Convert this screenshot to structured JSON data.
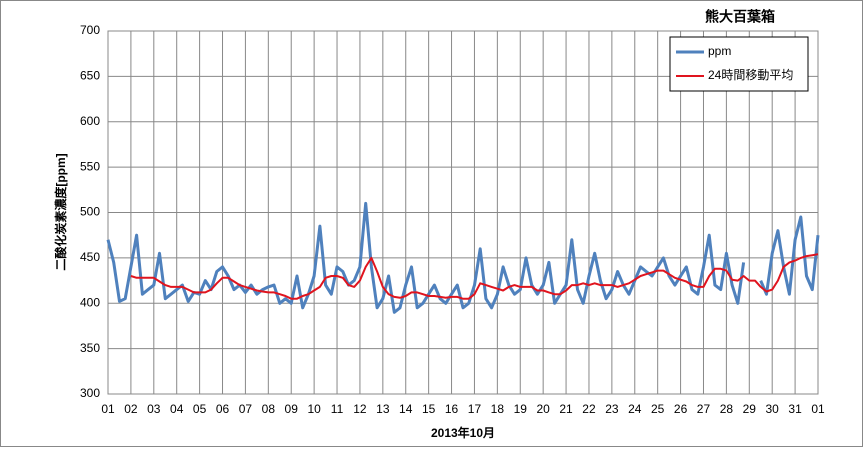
{
  "chart_data": {
    "type": "line",
    "title": "熊大百葉箱",
    "x_label": "2013年10月",
    "y_label": "二酸化炭素濃度[ppm]",
    "xlim": [
      1,
      32
    ],
    "ylim": [
      300,
      700
    ],
    "grid": true,
    "legend": "upper right",
    "yticks": [
      300,
      350,
      400,
      450,
      500,
      550,
      600,
      650,
      700
    ],
    "xticks": [
      {
        "value": 1,
        "label": "01"
      },
      {
        "value": 2,
        "label": "02"
      },
      {
        "value": 3,
        "label": "03"
      },
      {
        "value": 4,
        "label": "04"
      },
      {
        "value": 5,
        "label": "05"
      },
      {
        "value": 6,
        "label": "06"
      },
      {
        "value": 7,
        "label": "07"
      },
      {
        "value": 8,
        "label": "08"
      },
      {
        "value": 9,
        "label": "09"
      },
      {
        "value": 10,
        "label": "10"
      },
      {
        "value": 11,
        "label": "11"
      },
      {
        "value": 12,
        "label": "12"
      },
      {
        "value": 13,
        "label": "13"
      },
      {
        "value": 14,
        "label": "14"
      },
      {
        "value": 15,
        "label": "15"
      },
      {
        "value": 16,
        "label": "16"
      },
      {
        "value": 17,
        "label": "17"
      },
      {
        "value": 18,
        "label": "18"
      },
      {
        "value": 19,
        "label": "19"
      },
      {
        "value": 20,
        "label": "20"
      },
      {
        "value": 21,
        "label": "21"
      },
      {
        "value": 22,
        "label": "22"
      },
      {
        "value": 23,
        "label": "23"
      },
      {
        "value": 24,
        "label": "24"
      },
      {
        "value": 25,
        "label": "25"
      },
      {
        "value": 26,
        "label": "26"
      },
      {
        "value": 27,
        "label": "27"
      },
      {
        "value": 28,
        "label": "28"
      },
      {
        "value": 29,
        "label": "29"
      },
      {
        "value": 30,
        "label": "30"
      },
      {
        "value": 31,
        "label": "31"
      },
      {
        "value": 32,
        "label": "01"
      }
    ],
    "x": [
      1,
      1.25,
      1.5,
      1.75,
      2,
      2.25,
      2.5,
      2.75,
      3,
      3.25,
      3.5,
      3.75,
      4,
      4.25,
      4.5,
      4.75,
      5,
      5.25,
      5.5,
      5.75,
      6,
      6.25,
      6.5,
      6.75,
      7,
      7.25,
      7.5,
      7.75,
      8,
      8.25,
      8.5,
      8.75,
      9,
      9.25,
      9.5,
      9.75,
      10,
      10.25,
      10.5,
      10.75,
      11,
      11.25,
      11.5,
      11.75,
      12,
      12.25,
      12.5,
      12.75,
      13,
      13.25,
      13.5,
      13.75,
      14,
      14.25,
      14.5,
      14.75,
      15,
      15.25,
      15.5,
      15.75,
      16,
      16.25,
      16.5,
      16.75,
      17,
      17.25,
      17.5,
      17.75,
      18,
      18.25,
      18.5,
      18.75,
      19,
      19.25,
      19.5,
      19.75,
      20,
      20.25,
      20.5,
      20.75,
      21,
      21.25,
      21.5,
      21.75,
      22,
      22.25,
      22.5,
      22.75,
      23,
      23.25,
      23.5,
      23.75,
      24,
      24.25,
      24.5,
      24.75,
      25,
      25.25,
      25.5,
      25.75,
      26,
      26.25,
      26.5,
      26.75,
      27,
      27.25,
      27.5,
      27.75,
      28,
      28.25,
      28.5,
      28.75,
      29,
      29.25,
      29.5,
      29.75,
      30,
      30.25,
      30.5,
      30.75,
      31,
      31.25,
      31.5,
      31.75,
      32
    ],
    "series": [
      {
        "name": "ppm",
        "color": "#4f81bd",
        "width": 3,
        "values": [
          470,
          445,
          402,
          405,
          440,
          475,
          410,
          415,
          420,
          455,
          405,
          410,
          415,
          420,
          402,
          412,
          410,
          425,
          415,
          435,
          440,
          430,
          415,
          420,
          412,
          420,
          410,
          415,
          418,
          420,
          400,
          405,
          400,
          430,
          395,
          410,
          430,
          485,
          420,
          410,
          440,
          435,
          420,
          425,
          440,
          510,
          440,
          395,
          405,
          430,
          390,
          395,
          420,
          440,
          395,
          400,
          410,
          420,
          405,
          400,
          410,
          420,
          395,
          400,
          420,
          460,
          405,
          395,
          410,
          440,
          420,
          410,
          415,
          450,
          420,
          410,
          420,
          445,
          400,
          410,
          420,
          470,
          415,
          400,
          430,
          455,
          425,
          405,
          415,
          435,
          420,
          410,
          425,
          440,
          435,
          430,
          440,
          450,
          430,
          420,
          430,
          440,
          415,
          410,
          440,
          475,
          420,
          415,
          455,
          420,
          400,
          445,
          null,
          null,
          425,
          410,
          455,
          480,
          440,
          410,
          470,
          495,
          430,
          415,
          475
        ]
      },
      {
        "name": "24時間移動平均",
        "color": "#e0141e",
        "width": 2,
        "values": [
          null,
          null,
          null,
          null,
          430,
          428,
          428,
          428,
          428,
          424,
          420,
          418,
          418,
          418,
          415,
          412,
          412,
          412,
          415,
          422,
          428,
          428,
          424,
          420,
          418,
          416,
          414,
          413,
          412,
          412,
          410,
          408,
          405,
          405,
          408,
          410,
          414,
          418,
          428,
          430,
          430,
          428,
          420,
          418,
          425,
          440,
          450,
          435,
          418,
          410,
          407,
          406,
          408,
          412,
          412,
          410,
          408,
          408,
          407,
          406,
          407,
          407,
          405,
          405,
          410,
          422,
          420,
          418,
          416,
          414,
          418,
          420,
          418,
          418,
          418,
          414,
          414,
          412,
          410,
          410,
          414,
          420,
          420,
          422,
          420,
          422,
          420,
          420,
          420,
          418,
          420,
          422,
          426,
          430,
          432,
          434,
          436,
          436,
          432,
          428,
          426,
          424,
          420,
          418,
          418,
          430,
          438,
          438,
          436,
          426,
          425,
          430,
          425,
          425,
          418,
          413,
          415,
          425,
          440,
          445,
          447,
          450,
          452,
          453,
          454
        ]
      }
    ]
  }
}
